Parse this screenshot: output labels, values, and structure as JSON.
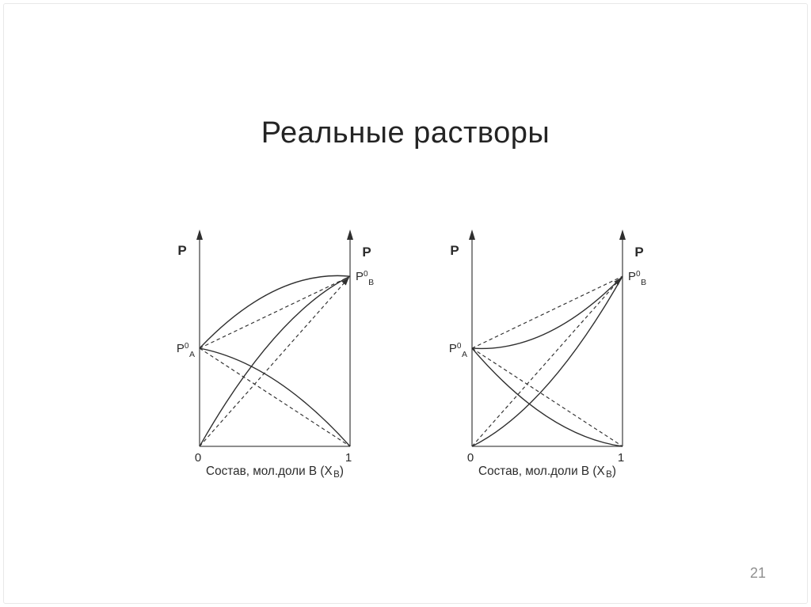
{
  "slide": {
    "title": "Реальные растворы",
    "page_number": "21"
  },
  "colors": {
    "line": "#2f2f2f",
    "axis": "#4a4a4a",
    "label": "#2b2b2b",
    "title": "#242424",
    "page_number": "#8f8f8f",
    "border": "#e8e8e8",
    "background": "#ffffff"
  },
  "chart_data": [
    {
      "type": "line",
      "id": "left-diagram",
      "y_axis_label_left": "P",
      "y_axis_label_right": "P",
      "p0_a_label": {
        "base": "P",
        "sup": "0",
        "sub": "A"
      },
      "p0_b_label": {
        "base": "P",
        "sup": "0",
        "sub": "B"
      },
      "x_ticks": [
        "0",
        "1"
      ],
      "x_axis_label": {
        "text": "Состав, мол.доли В (X",
        "sub": "B",
        "suffix": ")"
      },
      "xlim": [
        0,
        1
      ],
      "p0_a": 0.454,
      "p0_b": 0.787,
      "series": [
        {
          "name": "real-total-pressure",
          "style": "solid",
          "x": [
            0,
            1
          ],
          "p": [
            0.454,
            0.787
          ],
          "bow": 0.1
        },
        {
          "name": "real-partial-pressure-A",
          "style": "solid",
          "x": [
            0,
            1
          ],
          "p": [
            0.454,
            0
          ],
          "bow": 0.08
        },
        {
          "name": "real-partial-pressure-B",
          "style": "solid",
          "x": [
            0,
            1
          ],
          "p": [
            0,
            0.787
          ],
          "bow": 0.11
        },
        {
          "name": "ideal-total-pressure",
          "style": "dashed",
          "x": [
            0,
            1
          ],
          "p": [
            0.454,
            0.787
          ],
          "bow": 0
        },
        {
          "name": "ideal-partial-pressure-A",
          "style": "dashed",
          "x": [
            0,
            1
          ],
          "p": [
            0.454,
            0
          ],
          "bow": 0
        },
        {
          "name": "ideal-partial-pressure-B",
          "style": "dashed",
          "x": [
            0,
            1
          ],
          "p": [
            0,
            0.787
          ],
          "bow": 0,
          "arrow_end": true
        }
      ]
    },
    {
      "type": "line",
      "id": "right-diagram",
      "y_axis_label_left": "P",
      "y_axis_label_right": "P",
      "p0_a_label": {
        "base": "P",
        "sup": "0",
        "sub": "A"
      },
      "p0_b_label": {
        "base": "P",
        "sup": "0",
        "sub": "B"
      },
      "x_ticks": [
        "0",
        "1"
      ],
      "x_axis_label": {
        "text": "Состав, мол.доли В (X",
        "sub": "B",
        "suffix": ")"
      },
      "xlim": [
        0,
        1
      ],
      "p0_a": 0.454,
      "p0_b": 0.787,
      "series": [
        {
          "name": "real-total-pressure",
          "style": "solid",
          "x": [
            0,
            1
          ],
          "p": [
            0.454,
            0.787
          ],
          "bow": -0.095
        },
        {
          "name": "real-partial-pressure-A",
          "style": "solid",
          "x": [
            0,
            1
          ],
          "p": [
            0.454,
            0
          ],
          "bow": -0.09
        },
        {
          "name": "real-partial-pressure-B",
          "style": "solid",
          "x": [
            0,
            1
          ],
          "p": [
            0,
            0.787
          ],
          "bow": -0.11
        },
        {
          "name": "ideal-total-pressure",
          "style": "dashed",
          "x": [
            0,
            1
          ],
          "p": [
            0.454,
            0.787
          ],
          "bow": 0
        },
        {
          "name": "ideal-partial-pressure-A",
          "style": "dashed",
          "x": [
            0,
            1
          ],
          "p": [
            0.454,
            0
          ],
          "bow": 0
        },
        {
          "name": "ideal-partial-pressure-B",
          "style": "dashed",
          "x": [
            0,
            1
          ],
          "p": [
            0,
            0.787
          ],
          "bow": 0,
          "arrow_end": true
        }
      ]
    }
  ]
}
